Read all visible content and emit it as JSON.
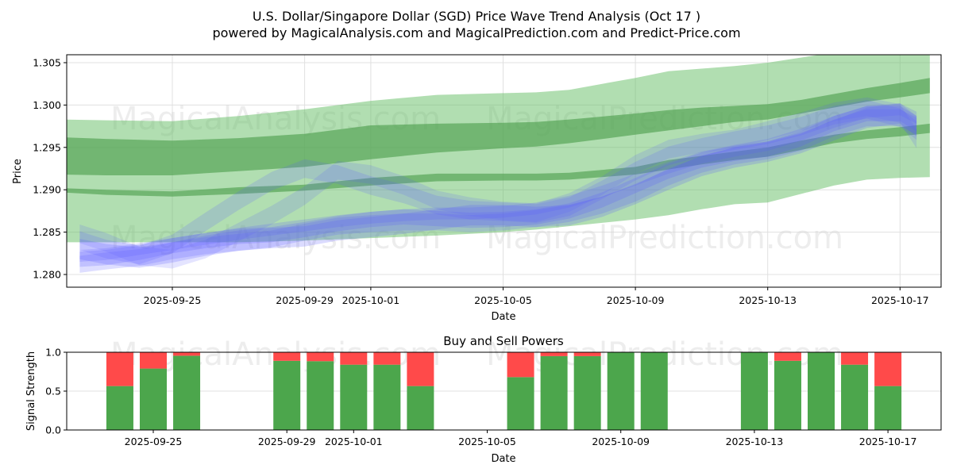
{
  "figure": {
    "title_line1": "U.S. Dollar/Singapore Dollar (SGD) Price Wave Trend Analysis (Oct 17 )",
    "title_line2": "powered by MagicalAnalysis.com and MagicalPrediction.com and Predict-Price.com",
    "watermarks": [
      "MagicalAnalysis.com",
      "MagicalPrediction.com"
    ]
  },
  "colors": {
    "band_light": "#6abf69",
    "band_dark": "#4c9e4c",
    "wave_blue": "#5a5aff",
    "buy": "#4ca64c",
    "sell": "#ff4a4a",
    "grid": "#e0e0e0"
  },
  "chart_data": [
    {
      "type": "area",
      "title": "",
      "xlabel": "Date",
      "ylabel": "Price",
      "ylim": [
        1.2783,
        1.3058
      ],
      "xlim": [
        "2025-09-21.8",
        "2025-10-18.2"
      ],
      "grid": true,
      "yticks": [
        1.28,
        1.285,
        1.29,
        1.295,
        1.3,
        1.305
      ],
      "ytick_labels": [
        "1.280",
        "1.285",
        "1.290",
        "1.295",
        "1.300",
        "1.305"
      ],
      "xticks": [
        "2025-09-25",
        "2025-09-29",
        "2025-10-01",
        "2025-10-05",
        "2025-10-09",
        "2025-10-13",
        "2025-10-17"
      ],
      "x_day_offsets": [
        -3.4,
        -2,
        0,
        2,
        4,
        6,
        8,
        10,
        11,
        12,
        14,
        15,
        16,
        17,
        18,
        19,
        20,
        21,
        22,
        22.9
      ],
      "green_bands": [
        {
          "name": "outer-band",
          "opacity": 0.5,
          "upper": [
            1.2983,
            1.2982,
            1.2981,
            1.2987,
            1.2995,
            1.3005,
            1.3012,
            1.3014,
            1.3015,
            1.3018,
            1.3032,
            1.304,
            1.3043,
            1.3046,
            1.305,
            1.3056,
            1.3062,
            1.3068,
            1.3075,
            1.308
          ],
          "lower": [
            1.2838,
            1.2838,
            1.2838,
            1.2838,
            1.284,
            1.2843,
            1.2846,
            1.285,
            1.2853,
            1.2857,
            1.2865,
            1.287,
            1.2877,
            1.2883,
            1.2885,
            1.2895,
            1.2905,
            1.2912,
            1.2914,
            1.2915
          ]
        },
        {
          "name": "upper-strong-band",
          "opacity": 0.6,
          "upper": [
            1.2962,
            1.296,
            1.2958,
            1.2961,
            1.2966,
            1.2976,
            1.2978,
            1.2979,
            1.298,
            1.2983,
            1.299,
            1.2994,
            1.2997,
            1.2999,
            1.3001,
            1.3006,
            1.3013,
            1.302,
            1.3026,
            1.3032
          ],
          "lower": [
            1.2918,
            1.2917,
            1.2917,
            1.2922,
            1.2927,
            1.2936,
            1.2944,
            1.2949,
            1.2951,
            1.2955,
            1.2965,
            1.297,
            1.2975,
            1.298,
            1.2983,
            1.299,
            1.2997,
            1.3004,
            1.3009,
            1.3014
          ]
        },
        {
          "name": "lower-strong-band",
          "opacity": 0.6,
          "upper": [
            1.2902,
            1.29,
            1.2898,
            1.2903,
            1.2906,
            1.2914,
            1.2919,
            1.2919,
            1.2919,
            1.292,
            1.2927,
            1.2935,
            1.294,
            1.2945,
            1.295,
            1.2958,
            1.2965,
            1.297,
            1.2974,
            1.2978
          ],
          "lower": [
            1.2897,
            1.2894,
            1.2892,
            1.2895,
            1.2899,
            1.2905,
            1.291,
            1.2911,
            1.2911,
            1.2912,
            1.2918,
            1.2924,
            1.293,
            1.2935,
            1.2939,
            1.2947,
            1.2955,
            1.296,
            1.2963,
            1.2967
          ]
        }
      ],
      "blue_wave_days": [
        -2.8,
        -2,
        -1,
        0,
        1,
        2,
        3,
        4,
        5,
        6,
        7,
        8,
        9,
        10,
        11,
        12,
        13,
        14,
        15,
        16,
        17,
        18,
        19,
        20,
        21,
        22,
        22.5
      ],
      "blue_waves": [
        {
          "center": [
            1.283,
            1.2824,
            1.282,
            1.2826,
            1.2834,
            1.284,
            1.2843,
            1.2845,
            1.2852,
            1.2856,
            1.286,
            1.2865,
            1.287,
            1.287,
            1.2868,
            1.287,
            1.288,
            1.2895,
            1.2912,
            1.2928,
            1.2938,
            1.2945,
            1.2955,
            1.297,
            1.2985,
            1.299,
            1.2975
          ],
          "width": 0.0024,
          "opacity": 0.22
        },
        {
          "center": [
            1.284,
            1.283,
            1.2823,
            1.2836,
            1.2862,
            1.2887,
            1.291,
            1.2925,
            1.2918,
            1.2905,
            1.2895,
            1.2882,
            1.2876,
            1.2874,
            1.2872,
            1.288,
            1.29,
            1.2922,
            1.294,
            1.295,
            1.2958,
            1.2965,
            1.2975,
            1.2988,
            1.2995,
            1.2985,
            1.297
          ],
          "width": 0.0022,
          "opacity": 0.18
        },
        {
          "center": [
            1.2848,
            1.2838,
            1.2822,
            1.2818,
            1.283,
            1.285,
            1.287,
            1.2893,
            1.2923,
            1.2918,
            1.2905,
            1.2888,
            1.288,
            1.2875,
            1.2873,
            1.2885,
            1.2905,
            1.293,
            1.2948,
            1.2955,
            1.296,
            1.297,
            1.298,
            1.2992,
            1.2998,
            1.299,
            1.296
          ],
          "width": 0.0022,
          "opacity": 0.16
        },
        {
          "center": [
            1.2818,
            1.282,
            1.2826,
            1.2834,
            1.284,
            1.2845,
            1.2847,
            1.2853,
            1.286,
            1.2865,
            1.2868,
            1.2866,
            1.2864,
            1.2865,
            1.2868,
            1.2875,
            1.2888,
            1.2905,
            1.2922,
            1.2935,
            1.2943,
            1.2948,
            1.296,
            1.2978,
            1.299,
            1.299,
            1.2978
          ],
          "width": 0.0018,
          "opacity": 0.22
        },
        {
          "center": [
            1.2812,
            1.2816,
            1.282,
            1.2828,
            1.2834,
            1.2838,
            1.2842,
            1.285,
            1.2857,
            1.286,
            1.2862,
            1.2862,
            1.286,
            1.2862,
            1.2866,
            1.2872,
            1.2882,
            1.2896,
            1.2915,
            1.293,
            1.294,
            1.2946,
            1.2956,
            1.2973,
            1.2985,
            1.2985,
            1.2975
          ],
          "width": 0.002,
          "opacity": 0.2
        },
        {
          "center": [
            1.2822,
            1.2824,
            1.283,
            1.2836,
            1.2842,
            1.2848,
            1.2853,
            1.2858,
            1.2863,
            1.2867,
            1.287,
            1.2872,
            1.2872,
            1.2874,
            1.2878,
            1.2886,
            1.2898,
            1.2912,
            1.2926,
            1.2938,
            1.2946,
            1.2953,
            1.2965,
            1.298,
            1.2992,
            1.2995,
            1.2985
          ],
          "width": 0.0014,
          "opacity": 0.2
        }
      ]
    },
    {
      "type": "bar",
      "title": "Buy and Sell Powers",
      "xlabel": "Date",
      "ylabel": "Signal Strength",
      "ylim": [
        0.0,
        1.0
      ],
      "yticks": [
        0.0,
        0.5,
        1.0
      ],
      "ytick_labels": [
        "0.0",
        "0.5",
        "1.0"
      ],
      "xticks": [
        "2025-09-25",
        "2025-09-29",
        "2025-10-01",
        "2025-10-05",
        "2025-10-09",
        "2025-10-13",
        "2025-10-17"
      ],
      "categories": [
        "2025-09-24",
        "2025-09-25",
        "2025-09-26",
        "2025-09-29",
        "2025-09-30",
        "2025-10-01",
        "2025-10-02",
        "2025-10-03",
        "2025-10-06",
        "2025-10-07",
        "2025-10-08",
        "2025-10-09",
        "2025-10-10",
        "2025-10-13",
        "2025-10-14",
        "2025-10-15",
        "2025-10-16",
        "2025-10-17"
      ],
      "series": [
        {
          "name": "Buy",
          "values": [
            0.565,
            0.79,
            0.955,
            0.89,
            0.885,
            0.84,
            0.84,
            0.565,
            0.68,
            0.95,
            0.95,
            1.0,
            1.0,
            1.0,
            0.89,
            1.0,
            0.84,
            0.565
          ]
        },
        {
          "name": "Sell",
          "values": [
            0.435,
            0.21,
            0.045,
            0.11,
            0.115,
            0.16,
            0.16,
            0.435,
            0.32,
            0.05,
            0.05,
            0.0,
            0.0,
            0.0,
            0.11,
            0.0,
            0.16,
            0.435
          ]
        }
      ]
    }
  ]
}
